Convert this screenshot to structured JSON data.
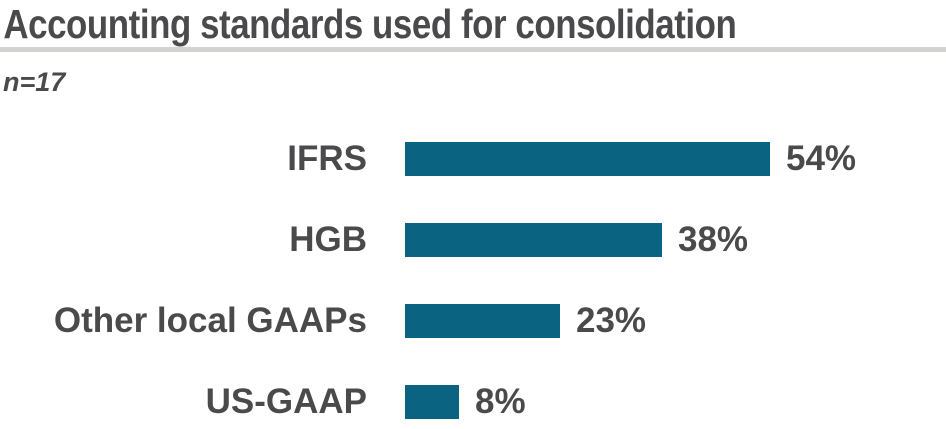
{
  "header": {
    "title": "Accounting standards used for consolidation",
    "sample_size": "n=17"
  },
  "colors": {
    "bar": "#0a6380",
    "text": "#4a4a4c",
    "divider": "#d2d2d0",
    "background": "#ffffff"
  },
  "chart_data": {
    "type": "bar",
    "orientation": "horizontal",
    "title": "Accounting standards used for consolidation",
    "subtitle": "n=17",
    "categories": [
      "IFRS",
      "HGB",
      "Other local GAAPs",
      "US-GAAP"
    ],
    "values": [
      54,
      38,
      23,
      8
    ],
    "value_labels": [
      "54%",
      "38%",
      "23%",
      "8%"
    ],
    "value_suffix": "%",
    "xlim": [
      0,
      60
    ],
    "grid": false,
    "legend_position": "none",
    "bar_color": "#0a6380"
  }
}
